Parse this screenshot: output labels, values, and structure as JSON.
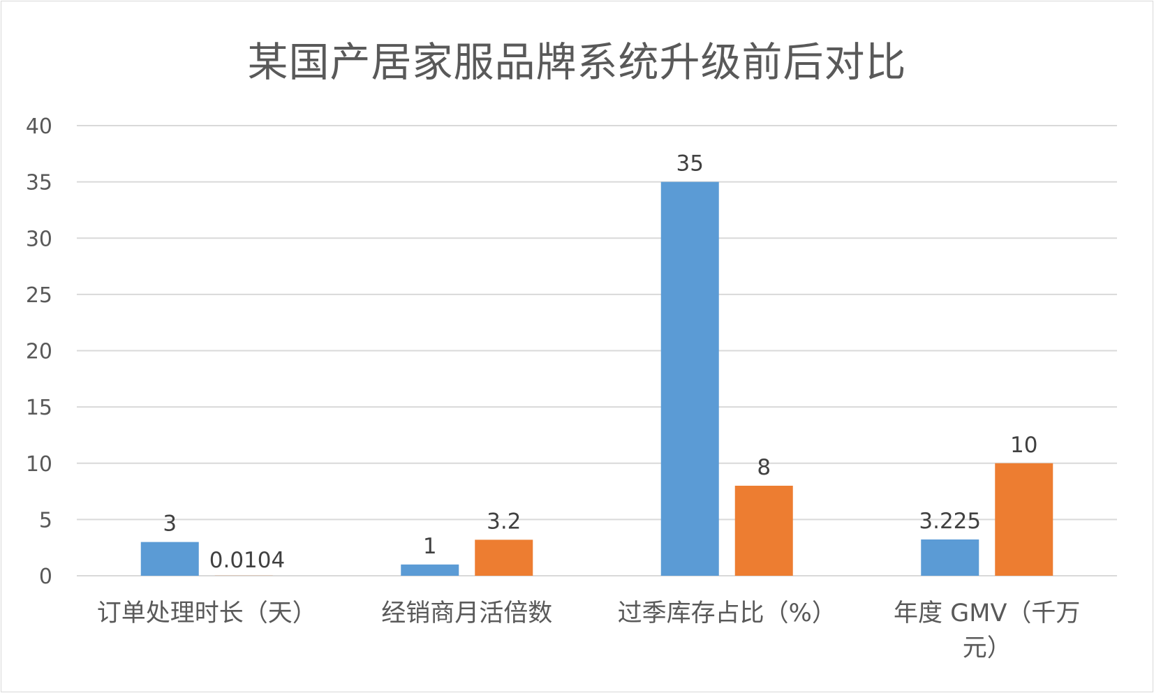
{
  "chart_data": {
    "type": "bar",
    "title": "某国产居家服品牌系统升级前后对比",
    "categories": [
      [
        "订单处理时长（天）"
      ],
      [
        "经销商月活倍数"
      ],
      [
        "过季库存占比（%）"
      ],
      [
        "年度 GMV（千万",
        "元）"
      ]
    ],
    "series": [
      {
        "color": "#5b9bd5",
        "values": [
          3,
          1,
          35,
          3.225
        ],
        "labels": [
          "3",
          "1",
          "35",
          "3.225"
        ]
      },
      {
        "color": "#ed7d31",
        "values": [
          0.0104,
          3.2,
          8,
          10
        ],
        "labels": [
          "0.0104",
          "3.2",
          "8",
          "10"
        ]
      }
    ],
    "ylim": [
      0,
      40
    ],
    "yticks": [
      0,
      5,
      10,
      15,
      20,
      25,
      30,
      35,
      40
    ],
    "grid": true,
    "legend": "none"
  }
}
